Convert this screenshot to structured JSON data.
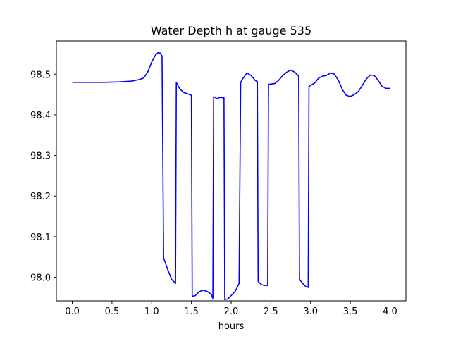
{
  "chart_data": {
    "type": "line",
    "title": "Water Depth h at gauge 535",
    "xlabel": "hours",
    "ylabel": "",
    "xlim": [
      -0.2,
      4.2
    ],
    "ylim": [
      97.942,
      98.582
    ],
    "grid": false,
    "line_color": "#0000ff",
    "x_ticks": [
      "0.0",
      "0.5",
      "1.0",
      "1.5",
      "2.0",
      "2.5",
      "3.0",
      "3.5",
      "4.0"
    ],
    "y_ticks": [
      "98.0",
      "98.1",
      "98.2",
      "98.3",
      "98.4",
      "98.5"
    ],
    "series": [
      {
        "x": [
          0.0,
          0.2,
          0.4,
          0.6,
          0.75,
          0.85,
          0.9,
          0.95,
          1.0,
          1.05,
          1.08,
          1.11,
          1.13,
          1.15,
          1.155,
          1.2,
          1.25,
          1.3,
          1.31,
          1.35,
          1.4,
          1.45,
          1.5,
          1.51,
          1.55,
          1.6,
          1.65,
          1.7,
          1.75,
          1.77,
          1.78,
          1.82,
          1.86,
          1.89,
          1.91,
          1.92,
          1.96,
          2.0,
          2.05,
          2.1,
          2.12,
          2.15,
          2.2,
          2.25,
          2.3,
          2.33,
          2.34,
          2.38,
          2.42,
          2.46,
          2.47,
          2.55,
          2.6,
          2.65,
          2.7,
          2.75,
          2.8,
          2.85,
          2.86,
          2.9,
          2.94,
          2.97,
          2.98,
          3.05,
          3.1,
          3.15,
          3.2,
          3.25,
          3.3,
          3.35,
          3.4,
          3.45,
          3.5,
          3.55,
          3.6,
          3.65,
          3.7,
          3.75,
          3.8,
          3.85,
          3.9,
          3.95,
          4.0
        ],
        "y": [
          98.48,
          98.48,
          98.48,
          98.481,
          98.483,
          98.487,
          98.491,
          98.505,
          98.53,
          98.548,
          98.553,
          98.552,
          98.545,
          98.048,
          98.045,
          98.02,
          97.995,
          97.985,
          98.48,
          98.465,
          98.455,
          98.452,
          98.448,
          97.953,
          97.955,
          97.965,
          97.968,
          97.965,
          97.958,
          97.948,
          98.445,
          98.44,
          98.443,
          98.442,
          98.442,
          97.945,
          97.947,
          97.955,
          97.965,
          97.985,
          98.48,
          98.49,
          98.503,
          98.497,
          98.485,
          98.482,
          97.99,
          97.982,
          97.98,
          97.98,
          98.475,
          98.477,
          98.485,
          98.497,
          98.505,
          98.51,
          98.505,
          98.495,
          97.995,
          97.985,
          97.977,
          97.975,
          98.47,
          98.478,
          98.49,
          98.495,
          98.497,
          98.503,
          98.5,
          98.485,
          98.462,
          98.448,
          98.445,
          98.45,
          98.457,
          98.472,
          98.488,
          98.498,
          98.497,
          98.485,
          98.47,
          98.465,
          98.465
        ]
      }
    ]
  }
}
